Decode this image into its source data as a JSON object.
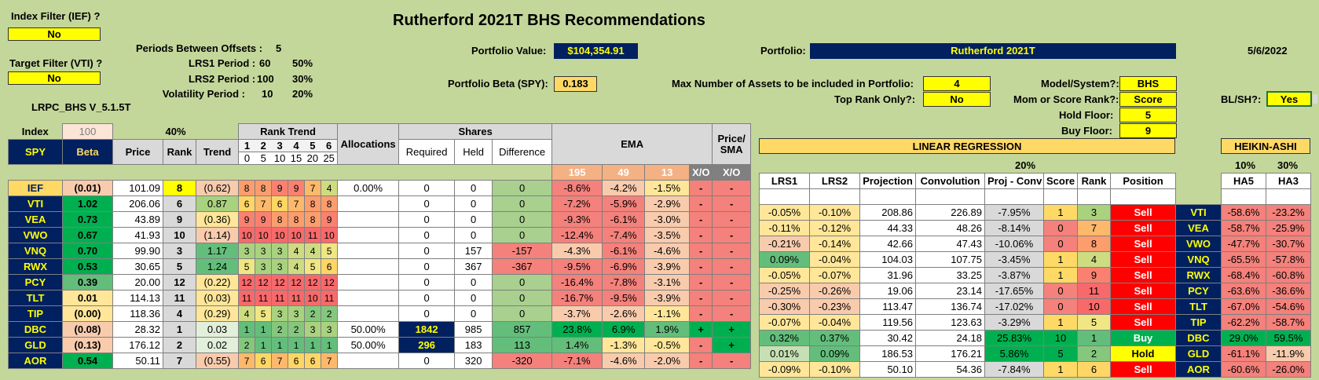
{
  "title": "Rutherford 2021T BHS Recommendations",
  "version": "LRPC_BHS V_5.1.5T",
  "date": "5/6/2022",
  "filters": {
    "index_filter_label": "Index Filter (IEF) ?",
    "index_filter_value": "No",
    "target_filter_label": "Target Filter (VTI) ?",
    "target_filter_value": "No"
  },
  "params": {
    "periods_label": "Periods Between Offsets :",
    "periods_value": "5",
    "lrs1_label": "LRS1 Period :",
    "lrs1_value": "60",
    "lrs1_pct": "50%",
    "lrs2_label": "LRS2 Period :",
    "lrs2_value": "100",
    "lrs2_pct": "30%",
    "vol_label": "Volatility Period :",
    "vol_value": "10",
    "vol_pct": "20%"
  },
  "portfolio": {
    "value_label": "Portfolio Value:",
    "value": "$104,354.91",
    "beta_label": "Portfolio Beta (SPY):",
    "beta": "0.183",
    "name_label": "Portfolio:",
    "name": "Rutherford 2021T",
    "max_assets_label": "Max Number of Assets to be included in Portfolio:",
    "max_assets": "4",
    "top_rank_label": "Top Rank Only?:",
    "top_rank": "No",
    "model_label": "Model/System?:",
    "model": "BHS",
    "mom_label": "Mom or Score Rank?:",
    "mom": "Score",
    "hold_floor_label": "Hold Floor:",
    "hold_floor": "5",
    "buy_floor_label": "Buy Floor:",
    "buy_floor": "9",
    "blsh_label": "BL/SH?:",
    "blsh": "Yes"
  },
  "headers": {
    "index": "Index",
    "index_val": "100",
    "pct40": "40%",
    "spy": "SPY",
    "beta": "Beta",
    "price": "Price",
    "rank": "Rank",
    "trend": "Trend",
    "rank_trend": "Rank Trend",
    "rt_nums": [
      "1",
      "2",
      "3",
      "4",
      "5",
      "6"
    ],
    "rt_offsets": [
      "0",
      "5",
      "10",
      "15",
      "20",
      "25"
    ],
    "allocations": "Allocations",
    "shares": "Shares",
    "required": "Required",
    "held": "Held",
    "difference": "Difference",
    "ema": "EMA",
    "ema_periods": [
      "195",
      "49",
      "13"
    ],
    "xo": "X/O",
    "price_sma": "Price/ SMA",
    "lin_reg": "LINEAR REGRESSION",
    "pct20": "20%",
    "lrs1": "LRS1",
    "lrs2": "LRS2",
    "projection": "Projection",
    "convolution": "Convolution",
    "proj_conv": "Proj - Conv",
    "score": "Score",
    "rank2": "Rank",
    "position": "Position",
    "heikin": "HEIKIN-ASHI",
    "ha_pct1": "10%",
    "ha_pct2": "30%",
    "ha5": "HA5",
    "ha3": "HA3"
  },
  "rows": [
    {
      "t": "IEF",
      "beta": "(0.01)",
      "price": "101.09",
      "rank": "8",
      "trend": "(0.62)",
      "rt": [
        "8",
        "8",
        "9",
        "9",
        "7",
        "4"
      ],
      "alloc": "0.00%",
      "req": "0",
      "held": "0",
      "diff": "0",
      "e195": "-8.6%",
      "e49": "-4.2%",
      "e13": "-1.5%",
      "xo": "-",
      "sma": "-",
      "lrs1": "",
      "lrs2": "",
      "proj": "",
      "conv": "",
      "pc": "",
      "score": "",
      "rank2": "",
      "pos": "",
      "ha5": "",
      "ha3": ""
    },
    {
      "t": "VTI",
      "beta": "1.02",
      "price": "206.06",
      "rank": "6",
      "trend": "0.87",
      "rt": [
        "6",
        "7",
        "6",
        "7",
        "8",
        "8"
      ],
      "alloc": "",
      "req": "0",
      "held": "0",
      "diff": "0",
      "e195": "-7.2%",
      "e49": "-5.9%",
      "e13": "-2.9%",
      "xo": "-",
      "sma": "-",
      "lrs1": "-0.05%",
      "lrs2": "-0.10%",
      "proj": "208.86",
      "conv": "226.89",
      "pc": "-7.95%",
      "score": "1",
      "rank2": "3",
      "pos": "Sell",
      "ha5": "-58.6%",
      "ha3": "-23.2%"
    },
    {
      "t": "VEA",
      "beta": "0.73",
      "price": "43.89",
      "rank": "9",
      "trend": "(0.36)",
      "rt": [
        "9",
        "9",
        "8",
        "8",
        "8",
        "9"
      ],
      "alloc": "",
      "req": "0",
      "held": "0",
      "diff": "0",
      "e195": "-9.3%",
      "e49": "-6.1%",
      "e13": "-3.0%",
      "xo": "-",
      "sma": "-",
      "lrs1": "-0.11%",
      "lrs2": "-0.12%",
      "proj": "44.33",
      "conv": "48.26",
      "pc": "-8.14%",
      "score": "0",
      "rank2": "7",
      "pos": "Sell",
      "ha5": "-58.7%",
      "ha3": "-25.9%"
    },
    {
      "t": "VWO",
      "beta": "0.67",
      "price": "41.93",
      "rank": "10",
      "trend": "(1.14)",
      "rt": [
        "10",
        "10",
        "10",
        "10",
        "11",
        "10"
      ],
      "alloc": "",
      "req": "0",
      "held": "0",
      "diff": "0",
      "e195": "-12.4%",
      "e49": "-7.4%",
      "e13": "-3.5%",
      "xo": "-",
      "sma": "-",
      "lrs1": "-0.21%",
      "lrs2": "-0.14%",
      "proj": "42.66",
      "conv": "47.43",
      "pc": "-10.06%",
      "score": "0",
      "rank2": "8",
      "pos": "Sell",
      "ha5": "-47.7%",
      "ha3": "-30.7%"
    },
    {
      "t": "VNQ",
      "beta": "0.70",
      "price": "99.90",
      "rank": "3",
      "trend": "1.17",
      "rt": [
        "3",
        "3",
        "3",
        "4",
        "4",
        "5"
      ],
      "alloc": "",
      "req": "0",
      "held": "157",
      "diff": "-157",
      "e195": "-4.3%",
      "e49": "-6.1%",
      "e13": "-4.6%",
      "xo": "-",
      "sma": "-",
      "lrs1": "0.09%",
      "lrs2": "-0.04%",
      "proj": "104.03",
      "conv": "107.75",
      "pc": "-3.45%",
      "score": "1",
      "rank2": "4",
      "pos": "Sell",
      "ha5": "-65.5%",
      "ha3": "-57.8%"
    },
    {
      "t": "RWX",
      "beta": "0.53",
      "price": "30.65",
      "rank": "5",
      "trend": "1.24",
      "rt": [
        "5",
        "3",
        "3",
        "4",
        "5",
        "6"
      ],
      "alloc": "",
      "req": "0",
      "held": "367",
      "diff": "-367",
      "e195": "-9.5%",
      "e49": "-6.9%",
      "e13": "-3.9%",
      "xo": "-",
      "sma": "-",
      "lrs1": "-0.05%",
      "lrs2": "-0.07%",
      "proj": "31.96",
      "conv": "33.25",
      "pc": "-3.87%",
      "score": "1",
      "rank2": "9",
      "pos": "Sell",
      "ha5": "-68.4%",
      "ha3": "-60.8%"
    },
    {
      "t": "PCY",
      "beta": "0.39",
      "price": "20.00",
      "rank": "12",
      "trend": "(0.22)",
      "rt": [
        "12",
        "12",
        "12",
        "12",
        "12",
        "12"
      ],
      "alloc": "",
      "req": "0",
      "held": "0",
      "diff": "0",
      "e195": "-16.4%",
      "e49": "-7.8%",
      "e13": "-3.1%",
      "xo": "-",
      "sma": "-",
      "lrs1": "-0.25%",
      "lrs2": "-0.26%",
      "proj": "19.06",
      "conv": "23.14",
      "pc": "-17.65%",
      "score": "0",
      "rank2": "11",
      "pos": "Sell",
      "ha5": "-63.6%",
      "ha3": "-36.6%"
    },
    {
      "t": "TLT",
      "beta": "0.01",
      "price": "114.13",
      "rank": "11",
      "trend": "(0.03)",
      "rt": [
        "11",
        "11",
        "11",
        "11",
        "10",
        "11"
      ],
      "alloc": "",
      "req": "0",
      "held": "0",
      "diff": "0",
      "e195": "-16.7%",
      "e49": "-9.5%",
      "e13": "-3.9%",
      "xo": "-",
      "sma": "-",
      "lrs1": "-0.30%",
      "lrs2": "-0.23%",
      "proj": "113.47",
      "conv": "136.74",
      "pc": "-17.02%",
      "score": "0",
      "rank2": "10",
      "pos": "Sell",
      "ha5": "-67.0%",
      "ha3": "-54.6%"
    },
    {
      "t": "TIP",
      "beta": "(0.00)",
      "price": "118.36",
      "rank": "4",
      "trend": "(0.29)",
      "rt": [
        "4",
        "5",
        "3",
        "3",
        "2",
        "2"
      ],
      "alloc": "",
      "req": "0",
      "held": "0",
      "diff": "0",
      "e195": "-3.7%",
      "e49": "-2.6%",
      "e13": "-1.1%",
      "xo": "-",
      "sma": "-",
      "lrs1": "-0.07%",
      "lrs2": "-0.04%",
      "proj": "119.56",
      "conv": "123.63",
      "pc": "-3.29%",
      "score": "1",
      "rank2": "5",
      "pos": "Sell",
      "ha5": "-62.2%",
      "ha3": "-58.7%"
    },
    {
      "t": "DBC",
      "beta": "(0.08)",
      "price": "28.32",
      "rank": "1",
      "trend": "0.03",
      "rt": [
        "1",
        "1",
        "2",
        "2",
        "3",
        "3"
      ],
      "alloc": "50.00%",
      "req": "1842",
      "held": "985",
      "diff": "857",
      "e195": "23.8%",
      "e49": "6.9%",
      "e13": "1.9%",
      "xo": "+",
      "sma": "+",
      "lrs1": "0.32%",
      "lrs2": "0.37%",
      "proj": "30.42",
      "conv": "24.18",
      "pc": "25.83%",
      "score": "10",
      "rank2": "1",
      "pos": "Buy",
      "ha5": "29.0%",
      "ha3": "59.5%"
    },
    {
      "t": "GLD",
      "beta": "(0.13)",
      "price": "176.12",
      "rank": "2",
      "trend": "0.02",
      "rt": [
        "2",
        "1",
        "1",
        "1",
        "1",
        "1"
      ],
      "alloc": "50.00%",
      "req": "296",
      "held": "183",
      "diff": "113",
      "e195": "1.4%",
      "e49": "-1.3%",
      "e13": "-0.5%",
      "xo": "-",
      "sma": "+",
      "lrs1": "0.01%",
      "lrs2": "0.09%",
      "proj": "186.53",
      "conv": "176.21",
      "pc": "5.86%",
      "score": "5",
      "rank2": "2",
      "pos": "Hold",
      "ha5": "-61.1%",
      "ha3": "-11.9%"
    },
    {
      "t": "AOR",
      "beta": "0.54",
      "price": "50.11",
      "rank": "7",
      "trend": "(0.55)",
      "rt": [
        "7",
        "6",
        "7",
        "6",
        "6",
        "7"
      ],
      "alloc": "",
      "req": "0",
      "held": "320",
      "diff": "-320",
      "e195": "-7.1%",
      "e49": "-4.6%",
      "e13": "-2.0%",
      "xo": "-",
      "sma": "-",
      "lrs1": "-0.09%",
      "lrs2": "-0.10%",
      "proj": "50.10",
      "conv": "54.36",
      "pc": "-7.84%",
      "score": "1",
      "rank2": "6",
      "pos": "Sell",
      "ha5": "-60.6%",
      "ha3": "-26.0%"
    }
  ]
}
